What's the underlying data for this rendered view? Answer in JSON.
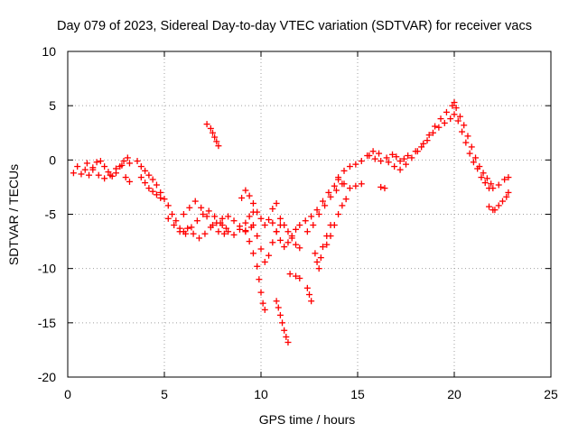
{
  "chart_data": {
    "type": "scatter",
    "title": "Day 079 of 2023, Sidereal Day-to-day VTEC variation (SDTVAR) for receiver vacs",
    "xlabel": "GPS time / hours",
    "ylabel": "SDTVAR / TECUs",
    "xlim": [
      0,
      25
    ],
    "ylim": [
      -20,
      10
    ],
    "x_ticks": [
      0,
      5,
      10,
      15,
      20,
      25
    ],
    "y_ticks": [
      10,
      5,
      0,
      -5,
      -10,
      -15,
      -20
    ],
    "grid": true,
    "marker": "plus",
    "color": "#ff0000",
    "series": [
      {
        "points": [
          [
            0.3,
            -1.2
          ],
          [
            0.5,
            -0.6
          ],
          [
            0.7,
            -1.3
          ],
          [
            0.9,
            -0.9
          ],
          [
            1.1,
            -1.4
          ],
          [
            1.3,
            -0.7
          ],
          [
            1.5,
            -0.2
          ],
          [
            1.7,
            -0.1
          ],
          [
            1.9,
            -0.6
          ],
          [
            2.1,
            -1.1
          ],
          [
            2.3,
            -1.5
          ],
          [
            2.5,
            -1.2
          ],
          [
            2.7,
            -0.6
          ],
          [
            2.9,
            -0.1
          ],
          [
            3.1,
            0.2
          ],
          [
            3.2,
            -0.3
          ],
          [
            3.0,
            -1.6
          ],
          [
            3.2,
            -2.0
          ],
          [
            1.0,
            -0.3
          ],
          [
            1.3,
            -0.9
          ],
          [
            1.6,
            -1.4
          ],
          [
            1.9,
            -1.7
          ],
          [
            2.2,
            -1.4
          ],
          [
            2.5,
            -0.8
          ],
          [
            2.8,
            -0.5
          ],
          [
            3.6,
            -0.1
          ],
          [
            3.8,
            -0.6
          ],
          [
            4.0,
            -1.0
          ],
          [
            4.2,
            -1.4
          ],
          [
            4.4,
            -1.8
          ],
          [
            4.6,
            -2.3
          ],
          [
            4.8,
            -3.0
          ],
          [
            5.0,
            -3.6
          ],
          [
            5.2,
            -4.2
          ],
          [
            5.4,
            -5.0
          ],
          [
            5.6,
            -5.6
          ],
          [
            5.8,
            -6.3
          ],
          [
            6.0,
            -6.6
          ],
          [
            3.8,
            -1.6
          ],
          [
            4.0,
            -2.1
          ],
          [
            4.2,
            -2.6
          ],
          [
            4.4,
            -2.9
          ],
          [
            4.6,
            -3.2
          ],
          [
            4.8,
            -3.5
          ],
          [
            5.2,
            -5.4
          ],
          [
            5.5,
            -6.0
          ],
          [
            5.8,
            -6.6
          ],
          [
            6.1,
            -6.8
          ],
          [
            6.4,
            -6.2
          ],
          [
            6.7,
            -5.6
          ],
          [
            7.0,
            -5.0
          ],
          [
            7.3,
            -4.7
          ],
          [
            7.6,
            -5.2
          ],
          [
            7.9,
            -5.8
          ],
          [
            8.2,
            -6.3
          ],
          [
            6.0,
            -5.0
          ],
          [
            6.3,
            -4.4
          ],
          [
            6.6,
            -3.8
          ],
          [
            6.9,
            -4.4
          ],
          [
            7.2,
            -5.2
          ],
          [
            7.5,
            -6.0
          ],
          [
            7.8,
            -6.6
          ],
          [
            8.1,
            -6.8
          ],
          [
            6.2,
            -6.3
          ],
          [
            6.5,
            -6.8
          ],
          [
            6.8,
            -7.2
          ],
          [
            7.1,
            -6.8
          ],
          [
            7.4,
            -6.2
          ],
          [
            7.7,
            -5.8
          ],
          [
            8.0,
            -5.4
          ],
          [
            8.3,
            -5.2
          ],
          [
            8.6,
            -5.6
          ],
          [
            8.9,
            -6.1
          ],
          [
            9.2,
            -6.6
          ],
          [
            9.5,
            -6.2
          ],
          [
            7.2,
            3.3
          ],
          [
            7.4,
            2.9
          ],
          [
            7.5,
            2.5
          ],
          [
            7.6,
            2.1
          ],
          [
            7.7,
            1.7
          ],
          [
            7.8,
            1.3
          ],
          [
            8.0,
            -6.0
          ],
          [
            8.3,
            -6.6
          ],
          [
            8.6,
            -6.9
          ],
          [
            8.9,
            -6.4
          ],
          [
            9.2,
            -5.8
          ],
          [
            9.4,
            -5.2
          ],
          [
            9.6,
            -4.8
          ],
          [
            9.0,
            -3.5
          ],
          [
            9.2,
            -2.8
          ],
          [
            9.4,
            -3.3
          ],
          [
            9.6,
            -4.0
          ],
          [
            9.8,
            -4.8
          ],
          [
            10.0,
            -5.4
          ],
          [
            10.2,
            -6.0
          ],
          [
            10.4,
            -5.5
          ],
          [
            10.6,
            -4.5
          ],
          [
            10.8,
            -4.0
          ],
          [
            9.2,
            -6.5
          ],
          [
            9.4,
            -7.5
          ],
          [
            9.6,
            -8.6
          ],
          [
            9.8,
            -9.8
          ],
          [
            9.9,
            -11.0
          ],
          [
            10.0,
            -12.2
          ],
          [
            10.1,
            -13.2
          ],
          [
            10.2,
            -13.8
          ],
          [
            9.6,
            -6.0
          ],
          [
            9.8,
            -7.0
          ],
          [
            10.0,
            -8.2
          ],
          [
            10.2,
            -9.4
          ],
          [
            10.4,
            -8.8
          ],
          [
            10.6,
            -7.6
          ],
          [
            10.8,
            -6.6
          ],
          [
            11.0,
            -6.0
          ],
          [
            10.8,
            -13.0
          ],
          [
            10.9,
            -13.6
          ],
          [
            11.0,
            -14.3
          ],
          [
            11.1,
            -15.0
          ],
          [
            11.2,
            -15.7
          ],
          [
            11.3,
            -16.3
          ],
          [
            11.4,
            -16.8
          ],
          [
            10.6,
            -5.8
          ],
          [
            10.8,
            -6.6
          ],
          [
            11.0,
            -7.4
          ],
          [
            11.2,
            -8.0
          ],
          [
            11.4,
            -7.6
          ],
          [
            11.6,
            -7.0
          ],
          [
            11.8,
            -6.4
          ],
          [
            12.0,
            -6.0
          ],
          [
            11.0,
            -5.4
          ],
          [
            11.2,
            -6.0
          ],
          [
            11.4,
            -6.6
          ],
          [
            11.6,
            -7.2
          ],
          [
            11.8,
            -7.8
          ],
          [
            12.0,
            -8.1
          ],
          [
            11.5,
            -10.5
          ],
          [
            11.8,
            -10.7
          ],
          [
            12.0,
            -10.9
          ],
          [
            12.4,
            -11.8
          ],
          [
            12.5,
            -12.4
          ],
          [
            12.6,
            -13.0
          ],
          [
            12.3,
            -5.6
          ],
          [
            12.6,
            -5.2
          ],
          [
            12.9,
            -4.6
          ],
          [
            13.2,
            -3.8
          ],
          [
            13.5,
            -3.0
          ],
          [
            13.8,
            -2.4
          ],
          [
            14.0,
            -1.6
          ],
          [
            14.3,
            -1.0
          ],
          [
            14.6,
            -0.6
          ],
          [
            14.9,
            -0.4
          ],
          [
            15.2,
            -0.1
          ],
          [
            15.5,
            0.4
          ],
          [
            15.8,
            0.8
          ],
          [
            16.1,
            0.6
          ],
          [
            12.4,
            -6.6
          ],
          [
            12.7,
            -6.0
          ],
          [
            13.0,
            -5.0
          ],
          [
            13.3,
            -4.2
          ],
          [
            13.6,
            -3.4
          ],
          [
            13.9,
            -2.8
          ],
          [
            14.2,
            -2.2
          ],
          [
            12.8,
            -8.6
          ],
          [
            12.9,
            -9.4
          ],
          [
            13.0,
            -10.0
          ],
          [
            13.1,
            -9.0
          ],
          [
            13.2,
            -8.0
          ],
          [
            13.4,
            -7.0
          ],
          [
            13.6,
            -6.0
          ],
          [
            13.4,
            -7.8
          ],
          [
            13.6,
            -7.0
          ],
          [
            13.8,
            -6.0
          ],
          [
            14.0,
            -5.0
          ],
          [
            14.2,
            -4.2
          ],
          [
            14.4,
            -3.6
          ],
          [
            14.0,
            -1.8
          ],
          [
            14.3,
            -2.2
          ],
          [
            14.6,
            -2.6
          ],
          [
            14.9,
            -2.4
          ],
          [
            15.2,
            -2.2
          ],
          [
            16.2,
            -2.5
          ],
          [
            16.4,
            -2.6
          ],
          [
            15.6,
            0.4
          ],
          [
            15.9,
            0.1
          ],
          [
            16.2,
            -0.1
          ],
          [
            16.5,
            0.2
          ],
          [
            16.8,
            0.5
          ],
          [
            17.0,
            0.3
          ],
          [
            17.2,
            -0.1
          ],
          [
            17.4,
            0.1
          ],
          [
            17.6,
            0.4
          ],
          [
            16.6,
            -0.2
          ],
          [
            16.9,
            -0.6
          ],
          [
            17.2,
            -0.9
          ],
          [
            17.5,
            -0.4
          ],
          [
            17.8,
            0.2
          ],
          [
            18.1,
            0.8
          ],
          [
            18.4,
            1.5
          ],
          [
            18.7,
            2.3
          ],
          [
            19.0,
            3.1
          ],
          [
            19.3,
            3.8
          ],
          [
            19.6,
            4.4
          ],
          [
            19.9,
            5.0
          ],
          [
            20.0,
            5.3
          ],
          [
            18.0,
            0.8
          ],
          [
            18.3,
            1.2
          ],
          [
            18.6,
            1.8
          ],
          [
            18.9,
            2.5
          ],
          [
            19.2,
            3.0
          ],
          [
            19.5,
            3.4
          ],
          [
            19.8,
            3.8
          ],
          [
            20.0,
            4.2
          ],
          [
            20.1,
            4.8
          ],
          [
            20.3,
            4.0
          ],
          [
            20.5,
            3.2
          ],
          [
            20.7,
            2.2
          ],
          [
            20.9,
            1.2
          ],
          [
            21.1,
            0.2
          ],
          [
            21.3,
            -0.6
          ],
          [
            21.5,
            -1.2
          ],
          [
            21.7,
            -1.7
          ],
          [
            21.9,
            -2.2
          ],
          [
            20.2,
            3.6
          ],
          [
            20.4,
            2.6
          ],
          [
            20.6,
            1.6
          ],
          [
            20.8,
            0.6
          ],
          [
            21.0,
            -0.2
          ],
          [
            21.2,
            -0.8
          ],
          [
            21.4,
            -1.6
          ],
          [
            21.6,
            -2.1
          ],
          [
            21.8,
            -2.6
          ],
          [
            21.8,
            -4.3
          ],
          [
            22.0,
            -4.6
          ],
          [
            22.1,
            -4.6
          ],
          [
            22.3,
            -4.2
          ],
          [
            22.5,
            -3.8
          ],
          [
            22.7,
            -3.4
          ],
          [
            22.8,
            -3.0
          ],
          [
            22.0,
            -2.6
          ],
          [
            22.3,
            -2.3
          ],
          [
            22.6,
            -1.8
          ],
          [
            22.8,
            -1.6
          ]
        ]
      }
    ]
  }
}
